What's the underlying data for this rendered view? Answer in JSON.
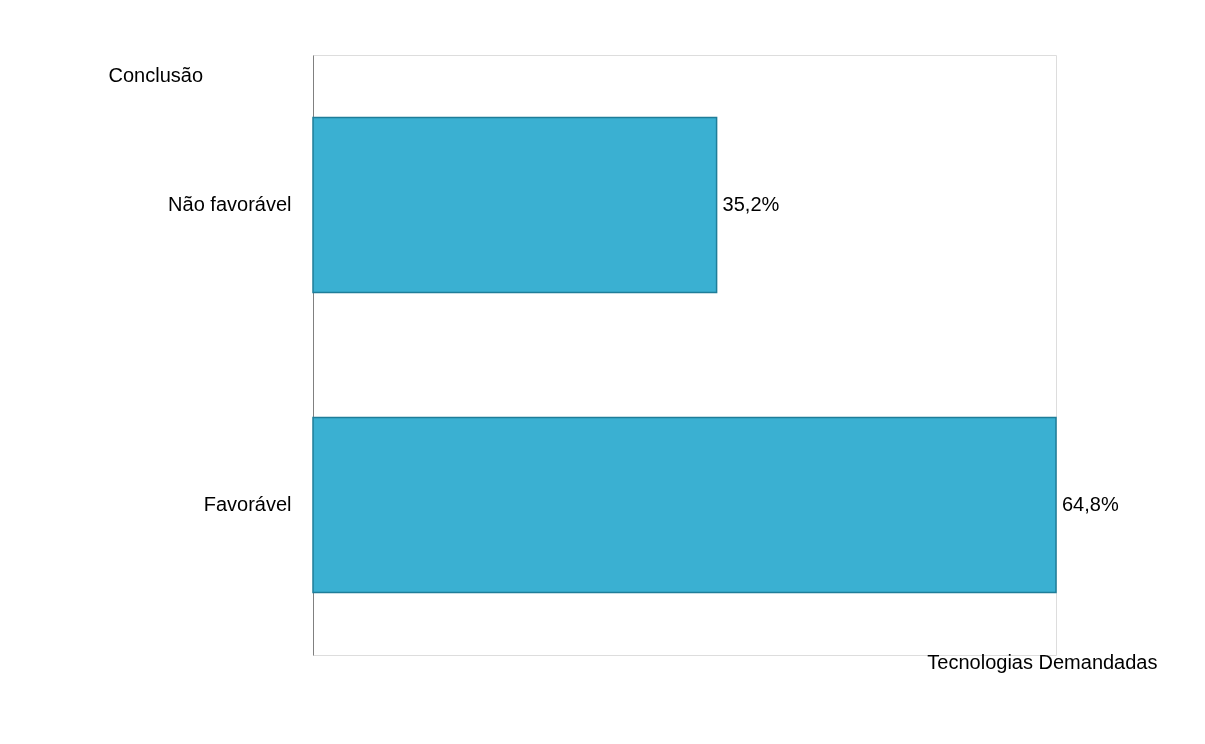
{
  "chart_data": {
    "type": "bar",
    "orientation": "horizontal",
    "categories": [
      "Não favorável",
      "Favorável"
    ],
    "values": [
      35.2,
      64.8
    ],
    "value_labels": [
      "35,2%",
      "64,8%"
    ],
    "color": "#3ab0d2",
    "ylabel": "Conclusão",
    "xlabel": "Tecnologias Demandadas",
    "grid": false
  }
}
